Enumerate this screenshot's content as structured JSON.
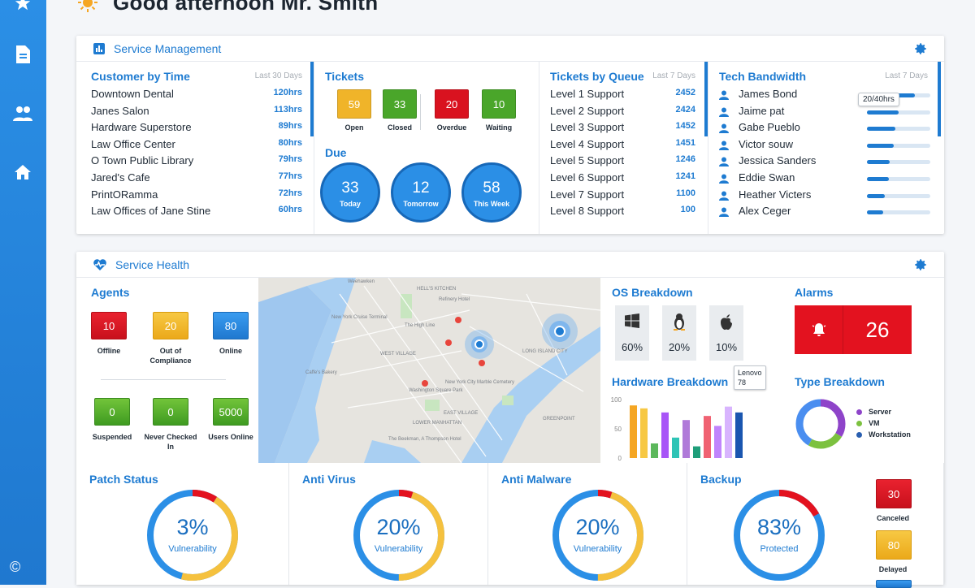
{
  "greeting": "Good afternoon Mr. Smith",
  "copyright": "©",
  "service_management": {
    "title": "Service Management",
    "customer_by_time": {
      "title": "Customer by Time",
      "period": "Last 30 Days",
      "rows": [
        {
          "name": "Downtown Dental",
          "value": "120hrs"
        },
        {
          "name": "Janes Salon",
          "value": "113hrs"
        },
        {
          "name": "Hardware Superstore",
          "value": "89hrs"
        },
        {
          "name": "Law Office Center",
          "value": "80hrs"
        },
        {
          "name": "O Town Public Library",
          "value": "79hrs"
        },
        {
          "name": "Jared's Cafe",
          "value": "77hrs"
        },
        {
          "name": "PrintORamma",
          "value": "72hrs"
        },
        {
          "name": "Law Offices of Jane Stine",
          "value": "60hrs"
        }
      ]
    },
    "tickets": {
      "title": "Tickets",
      "items": [
        {
          "value": "59",
          "label": "Open",
          "color": "#f0b429"
        },
        {
          "value": "33",
          "label": "Closed",
          "color": "#4aa62a"
        },
        {
          "value": "20",
          "label": "Overdue",
          "color": "#d9121f"
        },
        {
          "value": "10",
          "label": "Waiting",
          "color": "#4aa62a"
        }
      ],
      "due_title": "Due",
      "due": [
        {
          "value": "33",
          "label": "Today"
        },
        {
          "value": "12",
          "label": "Tomorrow"
        },
        {
          "value": "58",
          "label": "This Week"
        }
      ]
    },
    "tickets_by_queue": {
      "title": "Tickets by Queue",
      "period": "Last 7 Days",
      "rows": [
        {
          "name": "Level 1 Support",
          "value": "2452"
        },
        {
          "name": "Level 2 Support",
          "value": "2424"
        },
        {
          "name": "Level 3 Support",
          "value": "1452"
        },
        {
          "name": "Level 4 Support",
          "value": "1451"
        },
        {
          "name": "Level 5 Support",
          "value": "1246"
        },
        {
          "name": "Level 6 Support",
          "value": "1241"
        },
        {
          "name": "Level 7 Support",
          "value": "1100"
        },
        {
          "name": "Level 8 Support",
          "value": "100"
        }
      ]
    },
    "tech_bandwidth": {
      "title": "Tech Bandwidth",
      "period": "Last 7 Days",
      "tooltip": "20/40hrs",
      "rows": [
        {
          "name": "James Bond",
          "fraction": 0.75
        },
        {
          "name": "Jaime pat",
          "fraction": 0.5
        },
        {
          "name": "Gabe Pueblo",
          "fraction": 0.45
        },
        {
          "name": "Victor souw",
          "fraction": 0.42
        },
        {
          "name": "Jessica Sanders",
          "fraction": 0.36
        },
        {
          "name": "Eddie Swan",
          "fraction": 0.34
        },
        {
          "name": "Heather Victers",
          "fraction": 0.28
        },
        {
          "name": "Alex Ceger",
          "fraction": 0.26
        }
      ]
    }
  },
  "service_health": {
    "title": "Service Health",
    "agents": {
      "title": "Agents",
      "items": [
        {
          "value": "10",
          "label": "Offline",
          "color": "red"
        },
        {
          "value": "20",
          "label": "Out of Compliance",
          "color": "yellow"
        },
        {
          "value": "80",
          "label": "Online",
          "color": "blue"
        },
        {
          "value": "0",
          "label": "Suspended",
          "color": "green"
        },
        {
          "value": "0",
          "label": "Never Checked In",
          "color": "green"
        },
        {
          "value": "5000",
          "label": "Users Online",
          "color": "green"
        }
      ]
    },
    "map": {
      "labels": [
        "HELL'S KITCHEN",
        "Refinery Hotel",
        "The High Line",
        "WEST VILLAGE",
        "Caffe's Bakery",
        "Washington Square Park",
        "EAST VILLAGE",
        "New York City Marble Cemetery",
        "LOWER MANHATTAN",
        "The Beekman, A Thompson Hotel",
        "LONG ISLAND CITY",
        "Weehawken",
        "New York Cruise Terminal",
        "GREENPOINT"
      ]
    },
    "os_breakdown": {
      "title": "OS Breakdown",
      "items": [
        {
          "icon": "windows-icon",
          "value": "60%"
        },
        {
          "icon": "linux-icon",
          "value": "20%"
        },
        {
          "icon": "apple-icon",
          "value": "10%"
        }
      ]
    },
    "alarms": {
      "title": "Alarms",
      "value": "26"
    },
    "hardware_breakdown": {
      "title": "Hardware Breakdown",
      "tooltip_name": "Lenovo",
      "tooltip_value": "78"
    },
    "type_breakdown": {
      "title": "Type Breakdown",
      "legend": [
        {
          "label": "Server",
          "color": "#8e44c9"
        },
        {
          "label": "VM",
          "color": "#7cc13f"
        },
        {
          "label": "Workstation",
          "color": "#2a5fb0"
        }
      ]
    }
  },
  "chart_data": {
    "type": "bar",
    "values": [
      90,
      85,
      25,
      78,
      35,
      65,
      20,
      72,
      55,
      88,
      78
    ],
    "colors": [
      "#f5a623",
      "#f7c843",
      "#5cb85c",
      "#a855f7",
      "#2ec4b6",
      "#b07ad9",
      "#1f9e7a",
      "#f06272",
      "#c084fc",
      "#d8b4fe",
      "#1a56b0"
    ],
    "ylim": [
      0,
      100
    ],
    "yticks": [
      "100",
      "50",
      "0"
    ]
  },
  "security": [
    {
      "title": "Patch Status",
      "pct": "3%",
      "label": "Vulnerability",
      "fraction": 0.03
    },
    {
      "title": "Anti Virus",
      "pct": "20%",
      "label": "Vulnerability",
      "fraction": 0.2
    },
    {
      "title": "Anti Malware",
      "pct": "20%",
      "label": "Vulnerability",
      "fraction": 0.2
    },
    {
      "title": "Backup",
      "pct": "83%",
      "label": "Protected",
      "fraction": 0.83
    }
  ],
  "backup_status": [
    {
      "value": "30",
      "label": "Canceled"
    },
    {
      "value": "80",
      "label": "Delayed"
    }
  ]
}
